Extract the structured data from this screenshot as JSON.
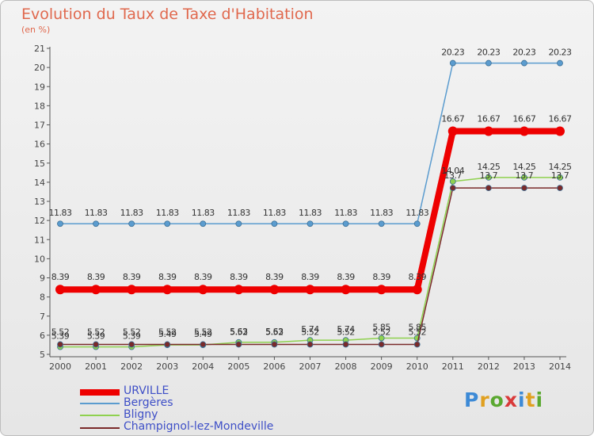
{
  "chart_data": {
    "type": "line",
    "title": "Evolution du Taux de Taxe d'Habitation",
    "subtitle": "(en %)",
    "x": [
      "2000",
      "2001",
      "2002",
      "2003",
      "2004",
      "2005",
      "2006",
      "2007",
      "2008",
      "2009",
      "2010",
      "2011",
      "2012",
      "2013",
      "2014"
    ],
    "ylim": [
      5,
      21
    ],
    "yticks": [
      5,
      6,
      7,
      8,
      9,
      10,
      11,
      12,
      13,
      14,
      15,
      16,
      17,
      18,
      19,
      20,
      21
    ],
    "grid": false,
    "legend_position": "bottom-left",
    "series": [
      {
        "name": "URVILLE",
        "color": "#ee0000",
        "values": [
          8.39,
          8.39,
          8.39,
          8.39,
          8.39,
          8.39,
          8.39,
          8.39,
          8.39,
          8.39,
          8.39,
          16.67,
          16.67,
          16.67,
          16.67
        ],
        "labels": [
          "8.39",
          "8.39",
          "8.39",
          "8.39",
          "8.39",
          "8.39",
          "8.39",
          "8.39",
          "8.39",
          "8.39",
          "8.39",
          "16.67",
          "16.67",
          "16.67",
          "16.67"
        ]
      },
      {
        "name": "Bergères",
        "color": "#5b9ccf",
        "values": [
          11.83,
          11.83,
          11.83,
          11.83,
          11.83,
          11.83,
          11.83,
          11.83,
          11.83,
          11.83,
          11.83,
          20.23,
          20.23,
          20.23,
          20.23
        ],
        "labels": [
          "11.83",
          "11.83",
          "11.83",
          "11.83",
          "11.83",
          "11.83",
          "11.83",
          "11.83",
          "11.83",
          "11.83",
          "11.83",
          "20.23",
          "20.23",
          "20.23",
          "20.23"
        ]
      },
      {
        "name": "Bligny",
        "color": "#8fd14f",
        "values": [
          5.39,
          5.39,
          5.39,
          5.49,
          5.49,
          5.63,
          5.63,
          5.74,
          5.74,
          5.85,
          5.85,
          14.04,
          14.25,
          14.25,
          14.25
        ],
        "labels": [
          "5.39",
          "5.39",
          "5.39",
          "5.49",
          "5.49",
          "5.63",
          "5.63",
          "5.74",
          "5.74",
          "5.85",
          "5.85",
          "14.04",
          "14.25",
          "14.25",
          "14.25"
        ]
      },
      {
        "name": "Champignol-lez-Mondeville",
        "color": "#7a2a2a",
        "values": [
          5.52,
          5.52,
          5.52,
          5.52,
          5.52,
          5.52,
          5.52,
          5.52,
          5.52,
          5.52,
          5.52,
          13.7,
          13.7,
          13.7,
          13.7
        ],
        "labels": [
          "5.52",
          "5.52",
          "5.52",
          "5.52",
          "5.52",
          "5.52",
          "5.52",
          "5.52",
          "5.52",
          "5.52",
          "5.52",
          "13.7",
          "13.7",
          "13.7",
          "13.7"
        ]
      }
    ]
  },
  "logo": {
    "text": "Proxiti"
  }
}
